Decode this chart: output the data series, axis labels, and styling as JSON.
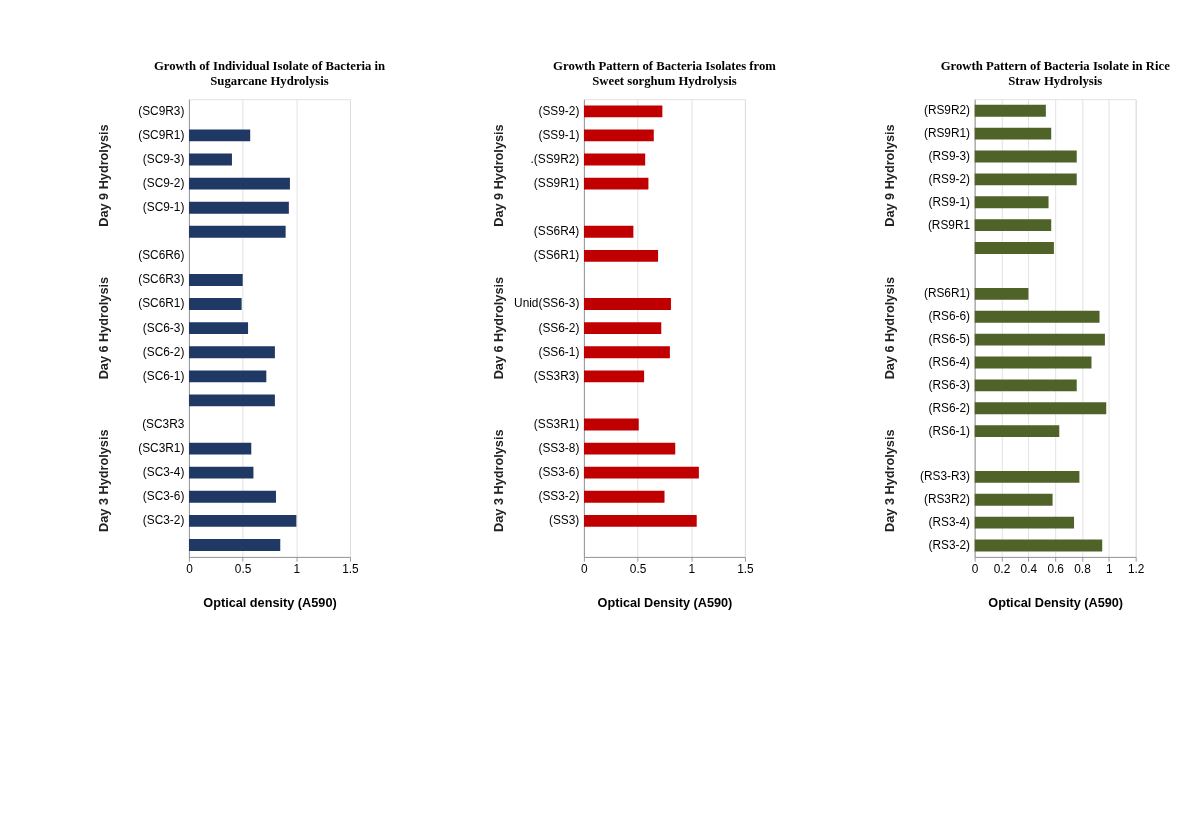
{
  "chart_data": [
    {
      "type": "bar",
      "orientation": "horizontal",
      "title": [
        "Growth of Individual Isolate of Bacteria in",
        "Sugarcane Hydrolysis"
      ],
      "xlabel": "Optical density (A590)",
      "categories": [
        "(SC9R3)",
        "(SC9R1)",
        "(SC9-3)",
        "(SC9-2)",
        "(SC9-1)",
        null,
        "(SC6R6)",
        "(SC6R3)",
        "(SC6R1)",
        "(SC6-3)",
        "(SC6-2)",
        "(SC6-1)",
        null,
        "(SC3R3",
        "(SC3R1)",
        "(SC3-4)",
        "(SC3-6)",
        "(SC3-2)",
        null
      ],
      "series": [
        {
          "color": "#1f3864",
          "values": [
            null,
            0.57,
            0.4,
            0.94,
            0.93,
            0.9,
            null,
            0.5,
            0.49,
            0.55,
            0.8,
            0.72,
            0.8,
            null,
            0.58,
            0.6,
            0.81,
            1.0,
            0.85
          ]
        }
      ],
      "xlim": [
        0,
        1.5
      ],
      "xticks": [
        0,
        0.5,
        1,
        1.5
      ],
      "grid": "x",
      "legend": false,
      "annotations": [
        "Day 9 Hydrolysis",
        "Day 6 Hydrolysis",
        "Day 3 Hydrolysis"
      ]
    },
    {
      "type": "bar",
      "orientation": "horizontal",
      "title": [
        "Growth Pattern of Bacteria Isolates from",
        "Sweet sorghum Hydrolysis"
      ],
      "xlabel": "Optical Density (A590)",
      "categories": [
        "(SS9-2)",
        "(SS9-1)",
        ".(SS9R2)",
        "(SS9R1)",
        null,
        "(SS6R4)",
        "(SS6R1)",
        null,
        "Unid(SS6-3)",
        "(SS6-2)",
        "(SS6-1)",
        "(SS3R3)",
        null,
        "(SS3R1)",
        "(SS3-8)",
        "(SS3-6)",
        "(SS3-2)",
        "(SS3)",
        null
      ],
      "series": [
        {
          "color": "#c00000",
          "values": [
            0.73,
            0.65,
            0.57,
            0.6,
            null,
            0.46,
            0.69,
            null,
            0.81,
            0.72,
            0.8,
            0.56,
            null,
            0.51,
            0.85,
            1.07,
            0.75,
            1.05,
            null
          ]
        }
      ],
      "xlim": [
        0,
        1.5
      ],
      "xticks": [
        0,
        0.5,
        1,
        1.5
      ],
      "grid": "x",
      "legend": false,
      "annotations": [
        "Day 9 Hydrolysis",
        "Day 6 Hydrolysis",
        "Day 3 Hydrolysis"
      ]
    },
    {
      "type": "bar",
      "orientation": "horizontal",
      "title": [
        "Growth Pattern of Bacteria Isolate in Rice",
        "Straw Hydrolysis"
      ],
      "xlabel": "Optical Density (A590)",
      "categories": [
        "(RS9R2)",
        "(RS9R1)",
        "(RS9-3)",
        "(RS9-2)",
        "(RS9-1)",
        "(RS9R1",
        null,
        null,
        "(RS6R1)",
        "(RS6-6)",
        "(RS6-5)",
        "(RS6-4)",
        "(RS6-3)",
        "(RS6-2)",
        "(RS6-1)",
        null,
        "(RS3-R3)",
        "(RS3R2)",
        "(RS3-4)",
        "(RS3-2)"
      ],
      "series": [
        {
          "color": "#4f6228",
          "values": [
            0.53,
            0.57,
            0.76,
            0.76,
            0.55,
            0.57,
            0.59,
            null,
            0.4,
            0.93,
            0.97,
            0.87,
            0.76,
            0.98,
            0.63,
            null,
            0.78,
            0.58,
            0.74,
            0.95
          ]
        }
      ],
      "xlim": [
        0,
        1.2
      ],
      "xticks": [
        0,
        0.2,
        0.4,
        0.6,
        0.8,
        1,
        1.2
      ],
      "grid": "x",
      "legend": false,
      "annotations": [
        "Day 9 Hydrolysis",
        "Day 6 Hydrolysis",
        "Day 3 Hydrolysis"
      ]
    }
  ]
}
